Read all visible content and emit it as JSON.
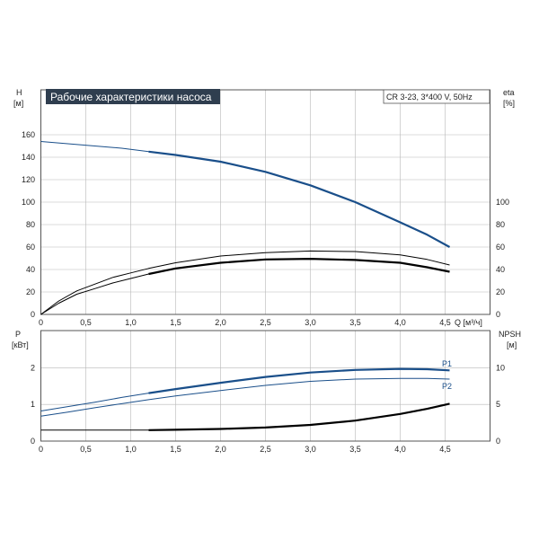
{
  "header": {
    "title": "Рабочие характеристики насоса",
    "model": "CR 3-23, 3*400 V, 50Hz"
  },
  "colors": {
    "blue": "#1a4f8a",
    "black": "#000000",
    "grid": "#b7b7b7",
    "title_bg": "#2f3e4f"
  },
  "chart_data": [
    {
      "type": "line",
      "name": "upper",
      "left_axis": {
        "label": "H",
        "unit": "[м]",
        "ticks": [
          "0",
          "20",
          "40",
          "60",
          "80",
          "100",
          "120",
          "140",
          "160"
        ]
      },
      "right_axis": {
        "label": "eta",
        "unit": "[%]",
        "ticks": [
          "0",
          "20",
          "40",
          "60",
          "80",
          "100"
        ]
      },
      "x_axis": {
        "unit_label": "Q [м³/ч]",
        "ticks": [
          "0",
          "0,5",
          "1,0",
          "1,5",
          "2,0",
          "2,5",
          "3,0",
          "3,5",
          "4,0",
          "4,5"
        ]
      },
      "xlim": [
        0,
        5
      ],
      "ylim": [
        0,
        180
      ],
      "grid": true,
      "series": [
        {
          "id": "H",
          "axis": "left",
          "color": "#1a4f8a",
          "x": [
            0,
            0.3,
            0.6,
            0.9,
            1.2,
            1.5,
            2.0,
            2.5,
            3.0,
            3.5,
            4.0,
            4.3,
            4.55
          ],
          "y": [
            154,
            152,
            150,
            148,
            145,
            142,
            136,
            127,
            115,
            100,
            82,
            71,
            60
          ],
          "bold_from": 1.2
        },
        {
          "id": "eta_max",
          "axis": "right",
          "color": "#000000",
          "x": [
            0,
            0.2,
            0.4,
            0.6,
            0.8,
            1.0,
            1.2,
            1.5,
            2.0,
            2.5,
            3.0,
            3.5,
            4.0,
            4.3,
            4.55
          ],
          "y": [
            0,
            12,
            21,
            27,
            33,
            37,
            41,
            46,
            52,
            55,
            56.5,
            56,
            53,
            49,
            44
          ],
          "bold_from": 99
        },
        {
          "id": "eta",
          "axis": "right",
          "color": "#000000",
          "x": [
            0,
            0.2,
            0.4,
            0.6,
            0.8,
            1.0,
            1.2,
            1.5,
            2.0,
            2.5,
            3.0,
            3.5,
            4.0,
            4.3,
            4.55
          ],
          "y": [
            0,
            10,
            18,
            23,
            28,
            32,
            36,
            41,
            46,
            49,
            49.5,
            48.5,
            46,
            42,
            38
          ],
          "bold_from": 1.2
        }
      ]
    },
    {
      "type": "line",
      "name": "lower",
      "left_axis": {
        "label": "P",
        "unit": "[кВт]",
        "ticks": [
          "0",
          "1",
          "2"
        ]
      },
      "right_axis": {
        "label": "NPSH",
        "unit": "[м]",
        "ticks": [
          "0",
          "5",
          "10"
        ]
      },
      "x_axis": {
        "ticks": [
          "0",
          "0,5",
          "1,0",
          "1,5",
          "2,0",
          "2,5",
          "3,0",
          "3,5",
          "4,0",
          "4,5"
        ]
      },
      "xlim": [
        0,
        5
      ],
      "ylim": [
        0,
        2.75
      ],
      "grid": true,
      "series": [
        {
          "id": "P1",
          "name": "P1",
          "axis": "left",
          "color": "#1a4f8a",
          "x": [
            0,
            0.3,
            0.6,
            0.9,
            1.2,
            1.5,
            2.0,
            2.5,
            3.0,
            3.5,
            4.0,
            4.3,
            4.55
          ],
          "y": [
            0.82,
            0.94,
            1.06,
            1.19,
            1.31,
            1.42,
            1.59,
            1.75,
            1.87,
            1.94,
            1.97,
            1.96,
            1.93
          ],
          "bold_from": 1.2
        },
        {
          "id": "P2",
          "name": "P2",
          "axis": "left",
          "color": "#1a4f8a",
          "x": [
            0,
            0.3,
            0.6,
            0.9,
            1.2,
            1.5,
            2.0,
            2.5,
            3.0,
            3.5,
            4.0,
            4.3,
            4.55
          ],
          "y": [
            0.68,
            0.79,
            0.91,
            1.02,
            1.13,
            1.23,
            1.38,
            1.52,
            1.63,
            1.69,
            1.71,
            1.71,
            1.69
          ],
          "bold_from": 99
        },
        {
          "id": "NPSH",
          "axis": "right",
          "color": "#000000",
          "x": [
            0,
            0.5,
            1.0,
            1.2,
            1.5,
            2.0,
            2.5,
            3.0,
            3.5,
            4.0,
            4.3,
            4.55
          ],
          "y": [
            1.5,
            1.5,
            1.5,
            1.5,
            1.55,
            1.65,
            1.85,
            2.2,
            2.8,
            3.7,
            4.4,
            5.1
          ],
          "bold_from": 1.2
        }
      ]
    }
  ]
}
